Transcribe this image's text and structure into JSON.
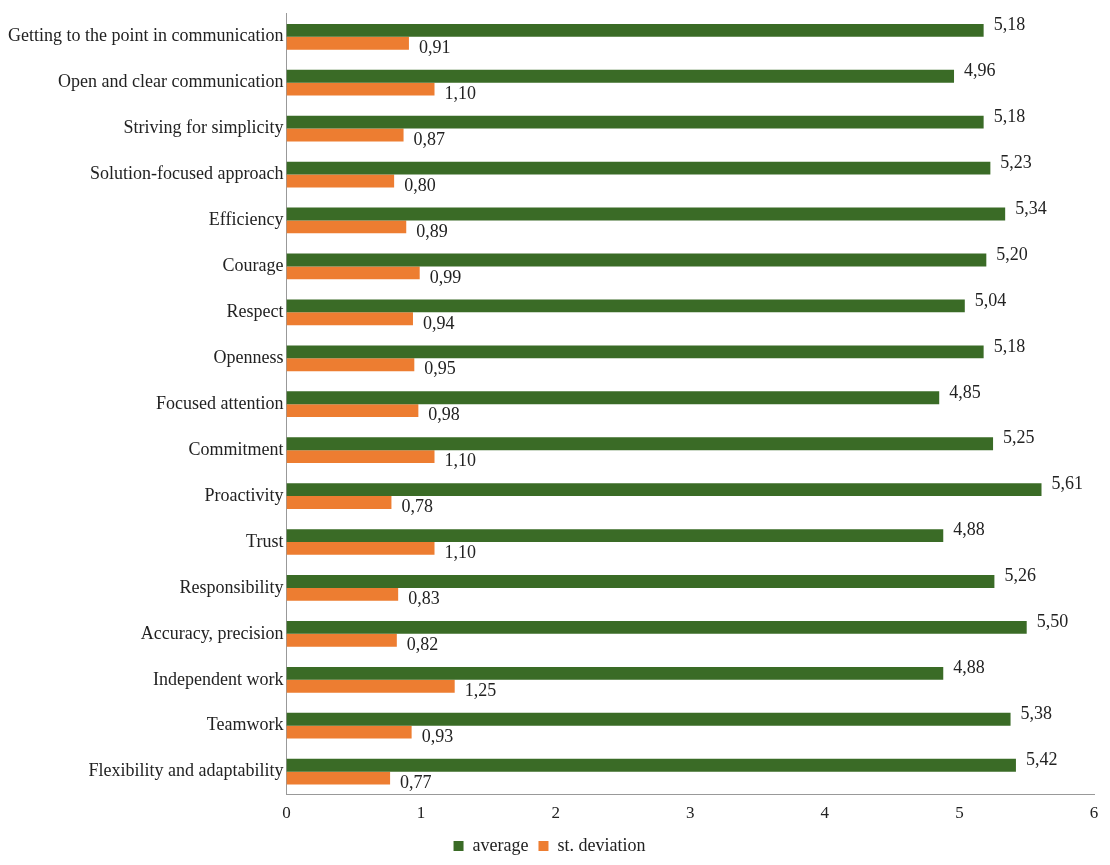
{
  "chart_data": {
    "type": "bar",
    "orientation": "horizontal",
    "categories": [
      "Getting to the point in communication",
      "Open and clear communication",
      "Striving for simplicity",
      "Solution-focused approach",
      "Efficiency",
      "Courage",
      "Respect",
      "Openness",
      "Focused attention",
      "Commitment",
      "Proactivity",
      "Trust",
      "Responsibility",
      "Accuracy, precision",
      "Independent work",
      "Teamwork",
      "Flexibility and adaptability"
    ],
    "series": [
      {
        "name": "average",
        "color": "#3a6b26",
        "values": [
          5.18,
          4.96,
          5.18,
          5.23,
          5.34,
          5.2,
          5.04,
          5.18,
          4.85,
          5.25,
          5.61,
          4.88,
          5.26,
          5.5,
          4.88,
          5.38,
          5.42
        ],
        "value_labels": [
          "5,18",
          "4,96",
          "5,18",
          "5,23",
          "5,34",
          "5,20",
          "5,04",
          "5,18",
          "4,85",
          "5,25",
          "5,61",
          "4,88",
          "5,26",
          "5,50",
          "4,88",
          "5,38",
          "5,42"
        ]
      },
      {
        "name": "st. deviation",
        "color": "#ed7d31",
        "values": [
          0.91,
          1.1,
          0.87,
          0.8,
          0.89,
          0.99,
          0.94,
          0.95,
          0.98,
          1.1,
          0.78,
          1.1,
          0.83,
          0.82,
          1.25,
          0.93,
          0.77
        ],
        "value_labels": [
          "0,91",
          "1,10",
          "0,87",
          "0,80",
          "0,89",
          "0,99",
          "0,94",
          "0,95",
          "0,98",
          "1,10",
          "0,78",
          "1,10",
          "0,83",
          "0,82",
          "1,25",
          "0,93",
          "0,77"
        ]
      }
    ],
    "xlim": [
      0,
      6
    ],
    "xticks": [
      0,
      1,
      2,
      3,
      4,
      5,
      6
    ],
    "grid": false,
    "legend": "bottom"
  }
}
